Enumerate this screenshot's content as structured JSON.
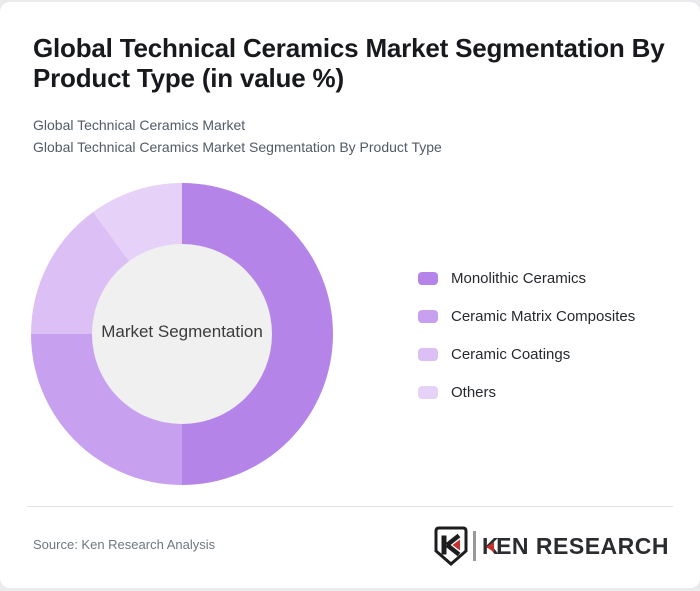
{
  "page": {
    "background_color": "#EBEBED",
    "card_color": "#FFFFFF"
  },
  "header": {
    "title_line1": "Global Technical Ceramics Market Segmentation By",
    "title_line2": "Product Type (in value %)",
    "subtitle_line1": "Global Technical Ceramics Market",
    "subtitle_line2": "Global Technical Ceramics Market Segmentation By Product Type"
  },
  "chart_data": {
    "type": "pie",
    "variant": "donut",
    "title": "Global Technical Ceramics Market Segmentation By Product Type (in value %)",
    "center_label": "Market Segmentation",
    "unit": "value %",
    "direction": "clockwise",
    "start_angle_deg": 0,
    "legend_position": "right",
    "categories": [
      "Monolithic Ceramics",
      "Ceramic Matrix Composites",
      "Ceramic Coatings",
      "Others"
    ],
    "values": [
      50,
      25,
      15,
      10
    ],
    "colors": [
      "#B584E8",
      "#C8A0F0",
      "#DCC0F5",
      "#E6D2F8"
    ],
    "inner_circle_color": "#F0F0F1"
  },
  "footer": {
    "source": "Source: Ken Research Analysis",
    "logo": {
      "emblem_letter": "K",
      "wordmark_first_letter": "K",
      "wordmark_rest": "EN RESEARCH",
      "accent_color": "#C5302C",
      "text_color": "#2A2C2F"
    }
  }
}
